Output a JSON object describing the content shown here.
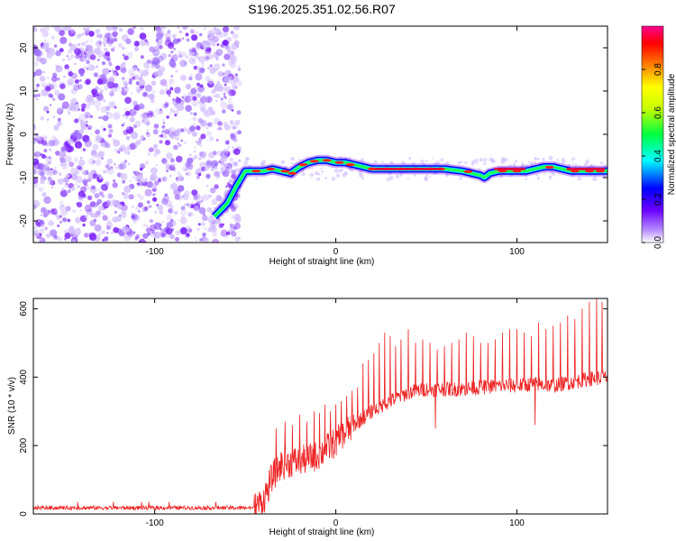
{
  "figure": {
    "title": "S196.2025.351.02.56.R07"
  },
  "colors": {
    "background": "#ffffff",
    "axis": "#000000",
    "snr_line": "#ee2222",
    "scatter": "#8a2be2"
  },
  "chart_data": [
    {
      "type": "heatmap",
      "title": "S196.2025.351.02.56.R07",
      "xlabel": "Height of straight line (km)",
      "ylabel": "Frequency (Hz)",
      "xlim": [
        -167,
        150
      ],
      "ylim": [
        -25,
        25
      ],
      "xticks": [
        -100,
        0,
        100
      ],
      "yticks": [
        -20,
        -10,
        0,
        10,
        20
      ],
      "noise_region_x": [
        -167,
        -53
      ],
      "ridge": {
        "x": [
          -67,
          -60,
          -55,
          -50,
          -45,
          -40,
          -35,
          -30,
          -25,
          -20,
          -15,
          -10,
          -5,
          0,
          5,
          10,
          15,
          20,
          30,
          40,
          50,
          60,
          70,
          75,
          80,
          82,
          85,
          90,
          95,
          100,
          105,
          110,
          115,
          120,
          125,
          130,
          135,
          140,
          150
        ],
        "freq": [
          -19,
          -16,
          -12,
          -8.5,
          -8.5,
          -8.5,
          -8,
          -8.5,
          -9,
          -7.5,
          -6.5,
          -6,
          -6,
          -6.5,
          -6.5,
          -7,
          -7.5,
          -8,
          -8,
          -8,
          -8,
          -8,
          -8.5,
          -9,
          -9.5,
          -10,
          -9,
          -8.5,
          -8.5,
          -8.5,
          -8.5,
          -8,
          -7.5,
          -7.5,
          -8,
          -8.5,
          -8.5,
          -8.5,
          -8.5
        ]
      },
      "colorbar": {
        "label": "Normalized spectral amplitude",
        "ticks": [
          "0.0",
          "0.2",
          "0.4",
          "0.6",
          "0.8"
        ],
        "range": [
          0,
          1
        ]
      }
    },
    {
      "type": "line",
      "xlabel": "Height of straight line (km)",
      "ylabel": "SNR (10 * v/v)",
      "xlim": [
        -167,
        150
      ],
      "ylim": [
        0,
        630
      ],
      "xticks": [
        -100,
        0,
        100
      ],
      "yticks": [
        0,
        200,
        400,
        600
      ],
      "trend": {
        "x": [
          -167,
          -45,
          -40,
          -35,
          -30,
          -20,
          -10,
          0,
          10,
          20,
          30,
          40,
          50,
          60,
          70,
          80,
          90,
          100,
          110,
          120,
          130,
          140,
          150
        ],
        "snr": [
          18,
          18,
          40,
          110,
          145,
          155,
          170,
          210,
          260,
          300,
          330,
          355,
          365,
          365,
          365,
          370,
          375,
          375,
          380,
          375,
          385,
          395,
          400
        ]
      },
      "spikes": [
        {
          "x": -33,
          "snr": 250
        },
        {
          "x": -28,
          "snr": 270
        },
        {
          "x": -24,
          "snr": 260
        },
        {
          "x": -20,
          "snr": 290
        },
        {
          "x": -16,
          "snr": 270
        },
        {
          "x": -12,
          "snr": 300
        },
        {
          "x": -9,
          "snr": 295
        },
        {
          "x": -6,
          "snr": 320
        },
        {
          "x": -3,
          "snr": 300
        },
        {
          "x": 0,
          "snr": 320
        },
        {
          "x": 3,
          "snr": 330
        },
        {
          "x": 6,
          "snr": 345
        },
        {
          "x": 9,
          "snr": 360
        },
        {
          "x": 12,
          "snr": 370
        },
        {
          "x": 15,
          "snr": 440
        },
        {
          "x": 18,
          "snr": 450
        },
        {
          "x": 21,
          "snr": 470
        },
        {
          "x": 24,
          "snr": 500
        },
        {
          "x": 27,
          "snr": 530
        },
        {
          "x": 30,
          "snr": 520
        },
        {
          "x": 33,
          "snr": 490
        },
        {
          "x": 36,
          "snr": 510
        },
        {
          "x": 40,
          "snr": 540
        },
        {
          "x": 44,
          "snr": 500
        },
        {
          "x": 48,
          "snr": 510
        },
        {
          "x": 52,
          "snr": 500
        },
        {
          "x": 56,
          "snr": 480
        },
        {
          "x": 60,
          "snr": 490
        },
        {
          "x": 64,
          "snr": 500
        },
        {
          "x": 68,
          "snr": 510
        },
        {
          "x": 72,
          "snr": 530
        },
        {
          "x": 76,
          "snr": 520
        },
        {
          "x": 80,
          "snr": 500
        },
        {
          "x": 84,
          "snr": 500
        },
        {
          "x": 88,
          "snr": 510
        },
        {
          "x": 92,
          "snr": 530
        },
        {
          "x": 96,
          "snr": 540
        },
        {
          "x": 100,
          "snr": 540
        },
        {
          "x": 104,
          "snr": 530
        },
        {
          "x": 108,
          "snr": 520
        },
        {
          "x": 112,
          "snr": 560
        },
        {
          "x": 116,
          "snr": 540
        },
        {
          "x": 120,
          "snr": 550
        },
        {
          "x": 124,
          "snr": 560
        },
        {
          "x": 128,
          "snr": 580
        },
        {
          "x": 132,
          "snr": 570
        },
        {
          "x": 136,
          "snr": 600
        },
        {
          "x": 140,
          "snr": 620
        },
        {
          "x": 144,
          "snr": 630
        },
        {
          "x": 147,
          "snr": 620
        }
      ],
      "dips": [
        {
          "x": 55,
          "snr": 250
        },
        {
          "x": 110,
          "snr": 260
        },
        {
          "x": -37,
          "snr": 40
        }
      ]
    }
  ]
}
